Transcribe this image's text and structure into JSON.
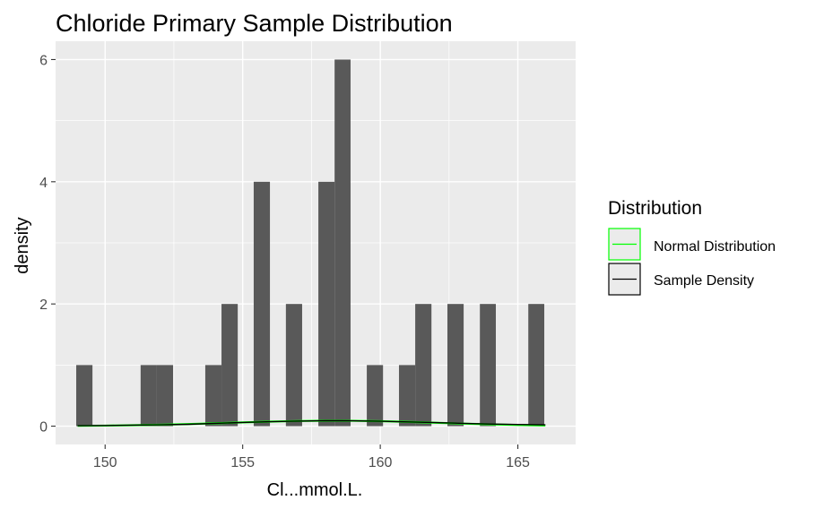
{
  "chart_data": {
    "type": "histogram",
    "title": "Chloride Primary Sample Distribution",
    "xlabel": "Cl...mmol.L.",
    "ylabel": "density",
    "xlim": [
      148.2,
      167.1
    ],
    "ylim": [
      -0.3,
      6.3
    ],
    "x_ticks": [
      150,
      155,
      160,
      165
    ],
    "y_ticks": [
      0,
      2,
      4,
      6
    ],
    "bin_width": 0.586,
    "bins": [
      {
        "x0": 148.95,
        "x1": 149.54,
        "value": 1
      },
      {
        "x0": 151.29,
        "x1": 151.88,
        "value": 1
      },
      {
        "x0": 151.88,
        "x1": 152.47,
        "value": 1
      },
      {
        "x0": 153.64,
        "x1": 154.23,
        "value": 1
      },
      {
        "x0": 154.23,
        "x1": 154.82,
        "value": 2
      },
      {
        "x0": 155.4,
        "x1": 155.99,
        "value": 4
      },
      {
        "x0": 156.57,
        "x1": 157.16,
        "value": 2
      },
      {
        "x0": 157.75,
        "x1": 158.34,
        "value": 4
      },
      {
        "x0": 158.34,
        "x1": 158.92,
        "value": 6
      },
      {
        "x0": 159.51,
        "x1": 160.1,
        "value": 1
      },
      {
        "x0": 160.68,
        "x1": 161.27,
        "value": 1
      },
      {
        "x0": 161.27,
        "x1": 161.86,
        "value": 2
      },
      {
        "x0": 162.44,
        "x1": 163.03,
        "value": 2
      },
      {
        "x0": 163.62,
        "x1": 164.2,
        "value": 2
      },
      {
        "x0": 165.38,
        "x1": 165.96,
        "value": 2
      }
    ],
    "series": [
      {
        "name": "Normal Distribution",
        "color": "#00ff00",
        "x": [
          149,
          150,
          151,
          152,
          153,
          154,
          155,
          156,
          157,
          158,
          159,
          160,
          161,
          162,
          163,
          164,
          165,
          166
        ],
        "y": [
          0.005,
          0.009,
          0.015,
          0.023,
          0.034,
          0.047,
          0.061,
          0.074,
          0.084,
          0.089,
          0.088,
          0.081,
          0.07,
          0.056,
          0.042,
          0.03,
          0.019,
          0.012
        ]
      },
      {
        "name": "Sample Density",
        "color": "#000000",
        "x": [
          149,
          150,
          151,
          152,
          153,
          154,
          155,
          156,
          157,
          158,
          159,
          160,
          161,
          162,
          163,
          164,
          165,
          166
        ],
        "y": [
          0.008,
          0.01,
          0.016,
          0.022,
          0.03,
          0.045,
          0.06,
          0.073,
          0.082,
          0.09,
          0.088,
          0.08,
          0.07,
          0.058,
          0.046,
          0.035,
          0.028,
          0.022
        ]
      }
    ],
    "legend": {
      "title": "Distribution",
      "placement": "right",
      "entries": [
        "Normal Distribution",
        "Sample Density"
      ]
    },
    "colors": {
      "panel_bg": "#ebebeb",
      "grid": "#ffffff",
      "bar_fill": "#595959"
    }
  }
}
